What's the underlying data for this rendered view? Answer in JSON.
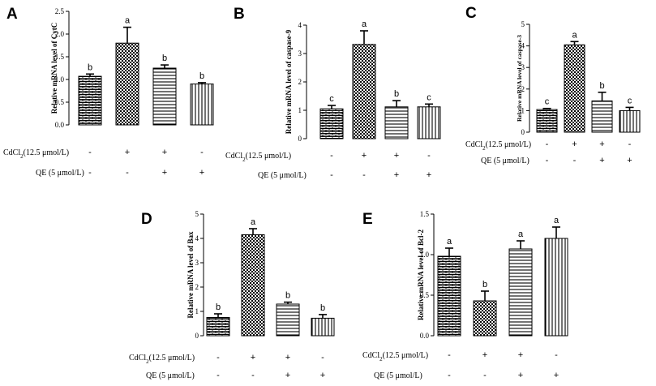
{
  "groups": [
    {
      "cdcl2": "-",
      "qe": "-"
    },
    {
      "cdcl2": "+",
      "qe": "-"
    },
    {
      "cdcl2": "+",
      "qe": "+"
    },
    {
      "cdcl2": "-",
      "qe": "+"
    }
  ],
  "treatments": {
    "cdcl2_label": "CdCl2(12.5 μmol/L)",
    "qe_label": "QE (5 μmol/L)"
  },
  "chart_data": [
    {
      "panel": "A",
      "type": "bar",
      "ylabel": "Relative mRNA level of CytC",
      "ylim": [
        0,
        2.5
      ],
      "yticks": [
        "0.0",
        "0.5",
        "1.0",
        "1.5",
        "2.0",
        "2.5"
      ],
      "values": [
        1.07,
        1.8,
        1.25,
        0.9
      ],
      "errors": [
        0.05,
        0.35,
        0.07,
        0.03
      ],
      "letters": [
        "b",
        "a",
        "b",
        "b"
      ]
    },
    {
      "panel": "B",
      "type": "bar",
      "ylabel": "Relative mRNA level of caspase-9",
      "ylim": [
        0,
        4
      ],
      "yticks": [
        "0",
        "1",
        "2",
        "3",
        "4"
      ],
      "values": [
        1.05,
        3.32,
        1.12,
        1.12
      ],
      "errors": [
        0.12,
        0.48,
        0.22,
        0.1
      ],
      "letters": [
        "c",
        "a",
        "b",
        "c"
      ]
    },
    {
      "panel": "C",
      "type": "bar",
      "ylabel": "Relative mRNA level of caspase-3",
      "ylim": [
        0,
        5
      ],
      "yticks": [
        "0",
        "1",
        "2",
        "3",
        "4",
        "5"
      ],
      "values": [
        1.05,
        4.05,
        1.45,
        1.0
      ],
      "errors": [
        0.05,
        0.15,
        0.4,
        0.15
      ],
      "letters": [
        "c",
        "a",
        "b",
        "c"
      ]
    },
    {
      "panel": "D",
      "type": "bar",
      "ylabel": "Relative mRNA level of Bax",
      "ylim": [
        0,
        5
      ],
      "yticks": [
        "0",
        "1",
        "2",
        "3",
        "4",
        "5"
      ],
      "values": [
        0.75,
        4.15,
        1.3,
        0.72
      ],
      "errors": [
        0.15,
        0.25,
        0.08,
        0.15
      ],
      "letters": [
        "b",
        "a",
        "b",
        "b"
      ]
    },
    {
      "panel": "E",
      "type": "bar",
      "ylabel": "Relative mRNA level of Bcl-2",
      "ylim": [
        0,
        1.5
      ],
      "yticks": [
        "0.0",
        "0.5",
        "1.0",
        "1.5"
      ],
      "values": [
        0.98,
        0.43,
        1.07,
        1.2
      ],
      "errors": [
        0.1,
        0.12,
        0.1,
        0.14
      ],
      "letters": [
        "a",
        "b",
        "a",
        "a"
      ]
    }
  ]
}
